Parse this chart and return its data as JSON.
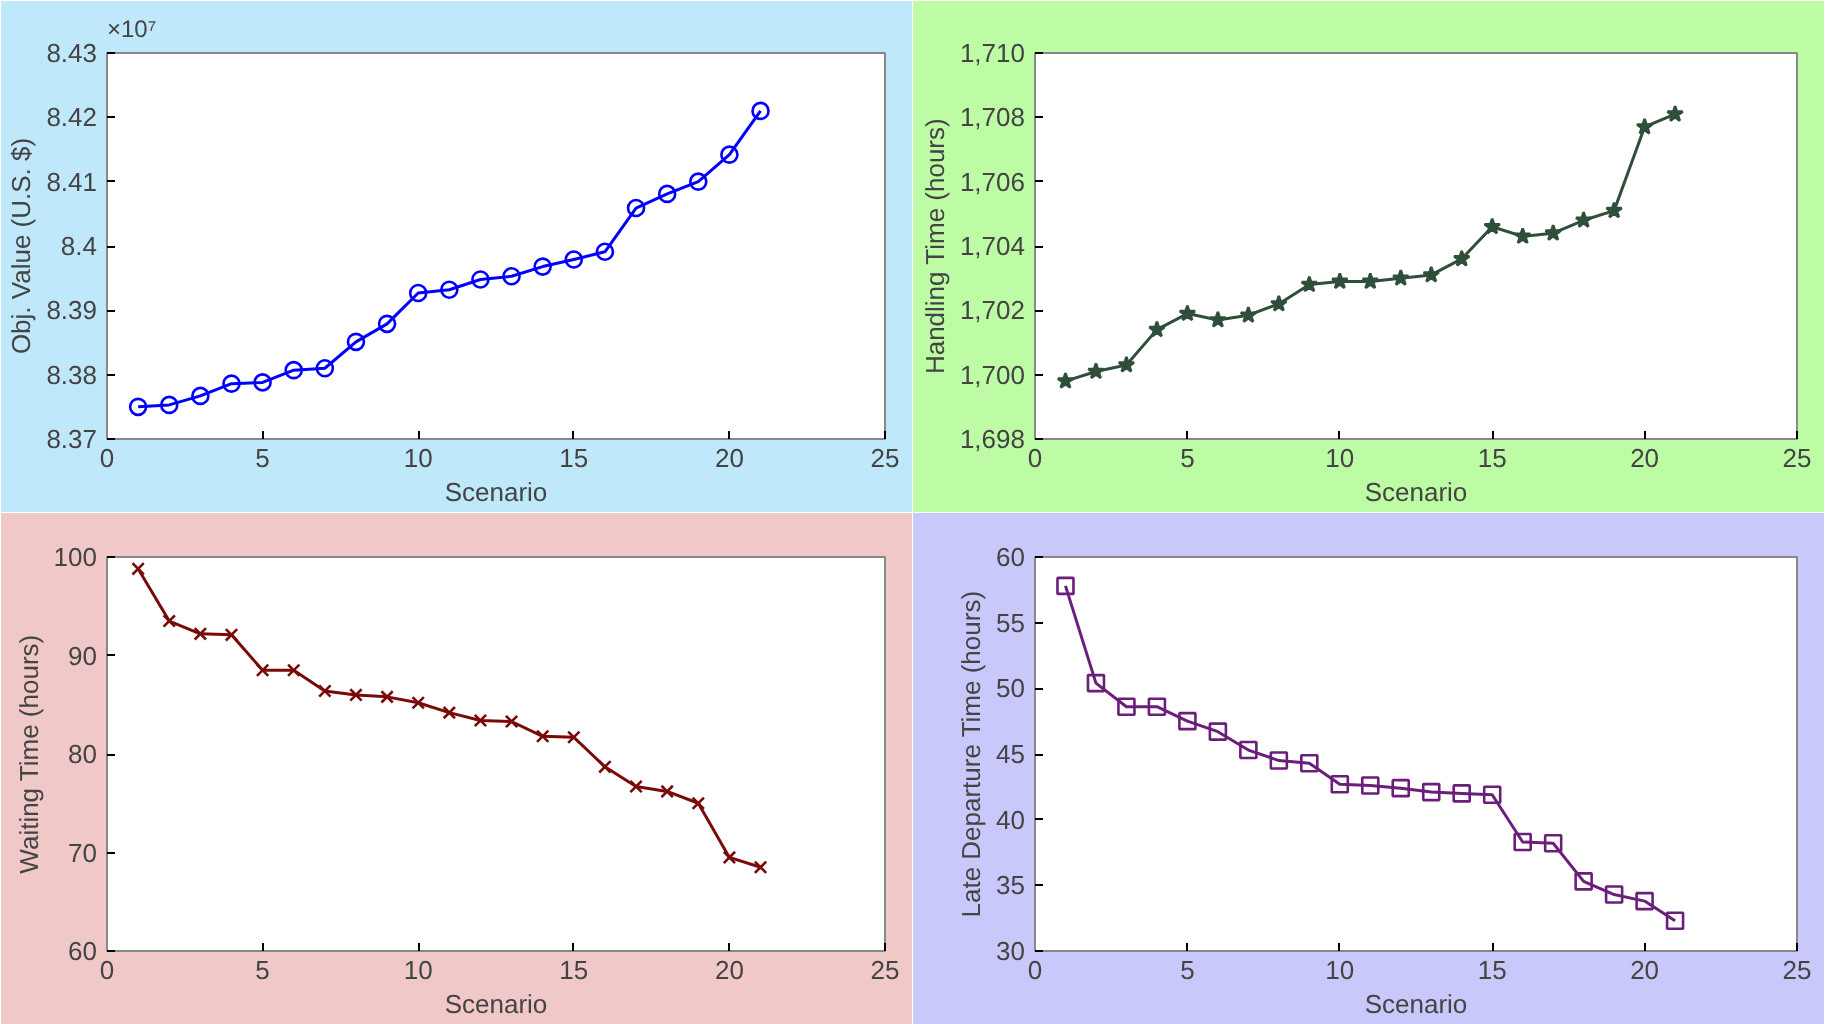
{
  "chart_data": [
    {
      "type": "line",
      "xlabel": "Scenario",
      "ylabel": "Obj. Value (U.S. $)",
      "annotations": [
        "×10⁷"
      ],
      "x": [
        1,
        2,
        3,
        4,
        5,
        6,
        7,
        8,
        9,
        10,
        11,
        12,
        13,
        14,
        15,
        16,
        17,
        18,
        19,
        20,
        21
      ],
      "xlim": [
        0,
        25
      ],
      "xticks": [
        0,
        5,
        10,
        15,
        20,
        25
      ],
      "ylim": [
        8.37,
        8.43
      ],
      "yticks": [
        8.37,
        8.38,
        8.39,
        8.4,
        8.41,
        8.42,
        8.43
      ],
      "grid": false,
      "marker": "circle",
      "line_style": "solid",
      "series": [
        {
          "color": "#0000ff",
          "values": [
            8.375,
            8.3753,
            8.3767,
            8.3786,
            8.3788,
            8.3807,
            8.381,
            8.3851,
            8.3879,
            8.3927,
            8.3932,
            8.3948,
            8.3953,
            8.3968,
            8.3979,
            8.3991,
            8.4059,
            8.4081,
            8.41,
            8.4142,
            8.421
          ]
        }
      ]
    },
    {
      "type": "line",
      "xlabel": "Scenario",
      "ylabel": "Handling Time (hours)",
      "x": [
        1,
        2,
        3,
        4,
        5,
        6,
        7,
        8,
        9,
        10,
        11,
        12,
        13,
        14,
        15,
        16,
        17,
        18,
        19,
        20,
        21
      ],
      "xlim": [
        0,
        25
      ],
      "xticks": [
        0,
        5,
        10,
        15,
        20,
        25
      ],
      "ylim": [
        1698,
        1710
      ],
      "yticks": [
        {
          "value": 1698,
          "label": "1,698"
        },
        {
          "value": 1700,
          "label": "1,700"
        },
        {
          "value": 1702,
          "label": "1,702"
        },
        {
          "value": 1704,
          "label": "1,704"
        },
        {
          "value": 1706,
          "label": "1,706"
        },
        {
          "value": 1708,
          "label": "1,708"
        },
        {
          "value": 1710,
          "label": "1,710"
        }
      ],
      "grid": false,
      "marker": "star",
      "line_style": "solid",
      "series": [
        {
          "color": "#2f4f3a",
          "values": [
            1699.8,
            1700.1,
            1700.3,
            1701.4,
            1701.9,
            1701.7,
            1701.85,
            1702.2,
            1702.8,
            1702.9,
            1702.9,
            1703.0,
            1703.1,
            1703.6,
            1704.6,
            1704.3,
            1704.4,
            1704.8,
            1705.1,
            1707.7,
            1708.1
          ]
        }
      ]
    },
    {
      "type": "line",
      "xlabel": "Scenario",
      "ylabel": "Waiting Time (hours)",
      "x": [
        1,
        2,
        3,
        4,
        5,
        6,
        7,
        8,
        9,
        10,
        11,
        12,
        13,
        14,
        15,
        16,
        17,
        18,
        19,
        20,
        21
      ],
      "xlim": [
        0,
        25
      ],
      "xticks": [
        0,
        5,
        10,
        15,
        20,
        25
      ],
      "ylim": [
        60,
        100
      ],
      "yticks": [
        60,
        70,
        80,
        90,
        100
      ],
      "grid": false,
      "marker": "cross",
      "line_style": "solid",
      "series": [
        {
          "color": "#7a0a0a",
          "values": [
            98.8,
            93.5,
            92.2,
            92.1,
            88.5,
            88.5,
            86.4,
            86.0,
            85.8,
            85.2,
            84.2,
            83.4,
            83.3,
            81.8,
            81.7,
            78.7,
            76.7,
            76.2,
            75.0,
            69.5,
            68.5
          ]
        }
      ]
    },
    {
      "type": "line",
      "xlabel": "Scenario",
      "ylabel": "Late Departure Time (hours)",
      "x": [
        1,
        2,
        3,
        4,
        5,
        6,
        7,
        8,
        9,
        10,
        11,
        12,
        13,
        14,
        15,
        16,
        17,
        18,
        19,
        20,
        21
      ],
      "xlim": [
        0,
        25
      ],
      "xticks": [
        0,
        5,
        10,
        15,
        20,
        25
      ],
      "ylim": [
        30,
        60
      ],
      "yticks": [
        30,
        35,
        40,
        45,
        50,
        55,
        60
      ],
      "grid": false,
      "marker": "square",
      "line_style": "solid",
      "series": [
        {
          "color": "#6a1f7a",
          "values": [
            57.8,
            50.4,
            48.6,
            48.6,
            47.5,
            46.7,
            45.3,
            44.5,
            44.3,
            42.7,
            42.6,
            42.4,
            42.1,
            42.0,
            41.9,
            38.3,
            38.2,
            35.3,
            34.3,
            33.8,
            32.3
          ]
        }
      ]
    }
  ]
}
